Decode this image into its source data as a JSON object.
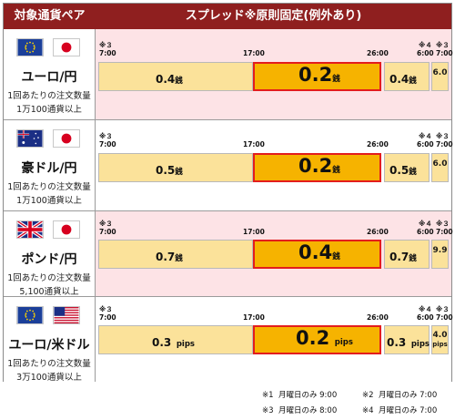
{
  "header": {
    "pair_column": "対象通貨ペア",
    "spread_column": "スプレッド※原則固定(例外あり)"
  },
  "time_labels": {
    "start": "7:00",
    "mid": "17:00",
    "end": "26:00",
    "last": "6:00",
    "tail": "7:00",
    "note1": "※３",
    "note2": "※４",
    "note3": "※３"
  },
  "rows": [
    {
      "flags": [
        "eu-flag",
        "jp-flag"
      ],
      "pair": "ユーロ/円",
      "sub1": "1回あたりの注文数量",
      "sub2": "1万100通貨以上",
      "morning": "0.4",
      "mid": "0.2",
      "night": "0.4",
      "tail": "6.0",
      "unit": "銭"
    },
    {
      "flags": [
        "au-flag",
        "jp-flag"
      ],
      "pair": "豪ドル/円",
      "sub1": "1回あたりの注文数量",
      "sub2": "1万100通貨以上",
      "morning": "0.5",
      "mid": "0.2",
      "night": "0.5",
      "tail": "6.0",
      "unit": "銭"
    },
    {
      "flags": [
        "gb-flag",
        "jp-flag"
      ],
      "pair": "ポンド/円",
      "sub1": "1回あたりの注文数量",
      "sub2": "5,100通貨以上",
      "morning": "0.7",
      "mid": "0.4",
      "night": "0.7",
      "tail": "9.9",
      "unit": "銭"
    },
    {
      "flags": [
        "eu-flag",
        "us-flag"
      ],
      "pair": "ユーロ/米ドル",
      "sub1": "1回あたりの注文数量",
      "sub2": "3万100通貨以上",
      "morning": "0.3",
      "mid": "0.2",
      "night": "0.3",
      "tail": "4.0",
      "unit": "pips"
    }
  ],
  "footnotes": {
    "n1_mark": "※1",
    "n1_text": "月曜日のみ 9:00",
    "n2_mark": "※2",
    "n2_text": "月曜日のみ 7:00",
    "n3_mark": "※3",
    "n3_text": "月曜日のみ 8:00",
    "n4_mark": "※4",
    "n4_text": "月曜日のみ 7:00"
  },
  "colors": {
    "header_bg": "#8f1f1f",
    "row_pink": "#fde3e6",
    "bar_yellow": "#fbe29a",
    "bar_orange": "#f6b300",
    "highlight_border": "#e31d1d"
  }
}
